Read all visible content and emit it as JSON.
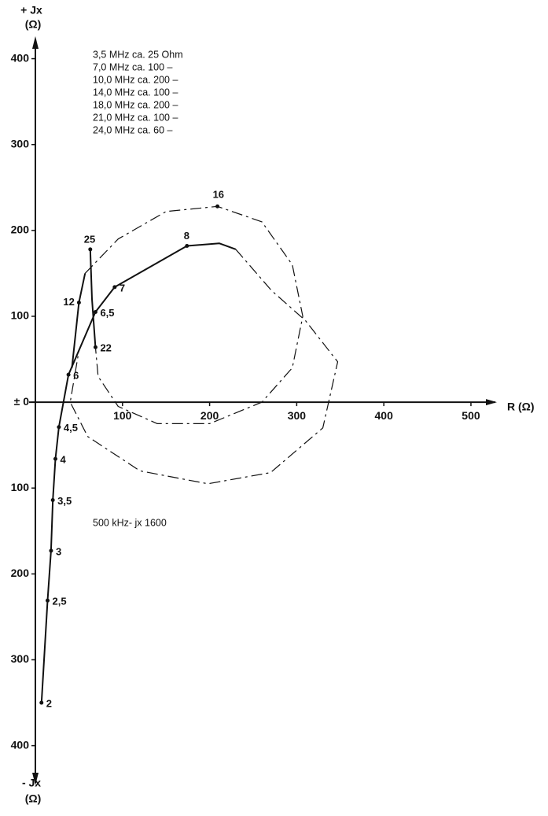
{
  "chart_data": {
    "type": "impedance-curve",
    "x_label": "R (Ω)",
    "y_label_top": [
      "+ Jx",
      "(Ω)"
    ],
    "y_label_bottom": [
      "- Jx",
      "(Ω)"
    ],
    "notes": [
      "3,5 MHz ca.  25 Ohm",
      "7,0 MHz ca. 100  –",
      "10,0 MHz ca. 200  –",
      "14,0 MHz ca. 100  –",
      "18,0 MHz ca. 200  –",
      "21,0 MHz ca. 100  –",
      "24,0 MHz ca.  60  –"
    ],
    "annotation": "500 kHz- jx 1600",
    "xlim": [
      0,
      528
    ],
    "ylim": [
      -448,
      450
    ],
    "xticks": [
      100,
      200,
      300,
      400,
      500
    ],
    "yticks": [
      400,
      300,
      200,
      100,
      {
        "value": 0,
        "label": "± 0"
      },
      {
        "value": -100,
        "label": "100"
      },
      {
        "value": -200,
        "label": "200"
      },
      {
        "value": -300,
        "label": "300"
      },
      {
        "value": -400,
        "label": "400"
      }
    ],
    "color": "#111111",
    "series": [
      {
        "dash": "solid",
        "x": [
          7,
          14,
          18,
          20,
          23,
          27,
          38,
          69,
          91,
          174,
          211,
          230
        ],
        "values": [
          -350,
          -231,
          -173,
          -114,
          -66,
          -29,
          32,
          105,
          134,
          182,
          185,
          178
        ],
        "labels": [
          "2",
          "2,5",
          "3",
          "3,5",
          "4",
          "4,5",
          "6",
          "6,5",
          "7",
          "8",
          null,
          null
        ]
      },
      {
        "dash": "dashed",
        "x": [
          230,
          271,
          310,
          347,
          330,
          270,
          198,
          120,
          60,
          40,
          50
        ],
        "values": [
          178,
          130,
          95,
          47,
          -30,
          -82,
          -95,
          -80,
          -40,
          0,
          60
        ],
        "labels": [
          null,
          null,
          null,
          null,
          null,
          null,
          null,
          null,
          null,
          null,
          null
        ]
      },
      {
        "dash": "solid",
        "x": [
          42,
          50,
          57
        ],
        "values": [
          40,
          116,
          150
        ],
        "labels": [
          null,
          "12",
          null
        ]
      },
      {
        "dash": "dashed",
        "x": [
          57,
          95,
          150,
          209,
          260,
          295,
          307,
          295,
          260,
          200,
          140,
          95,
          72,
          69
        ],
        "values": [
          150,
          190,
          222,
          228,
          210,
          160,
          100,
          40,
          0,
          -25,
          -25,
          -5,
          30,
          64
        ],
        "labels": [
          null,
          null,
          null,
          "16",
          null,
          null,
          null,
          null,
          null,
          null,
          null,
          null,
          null,
          null
        ]
      },
      {
        "dash": "solid",
        "x": [
          69,
          65,
          63
        ],
        "values": [
          64,
          120,
          178
        ],
        "labels": [
          "22",
          null,
          "25"
        ]
      }
    ]
  }
}
